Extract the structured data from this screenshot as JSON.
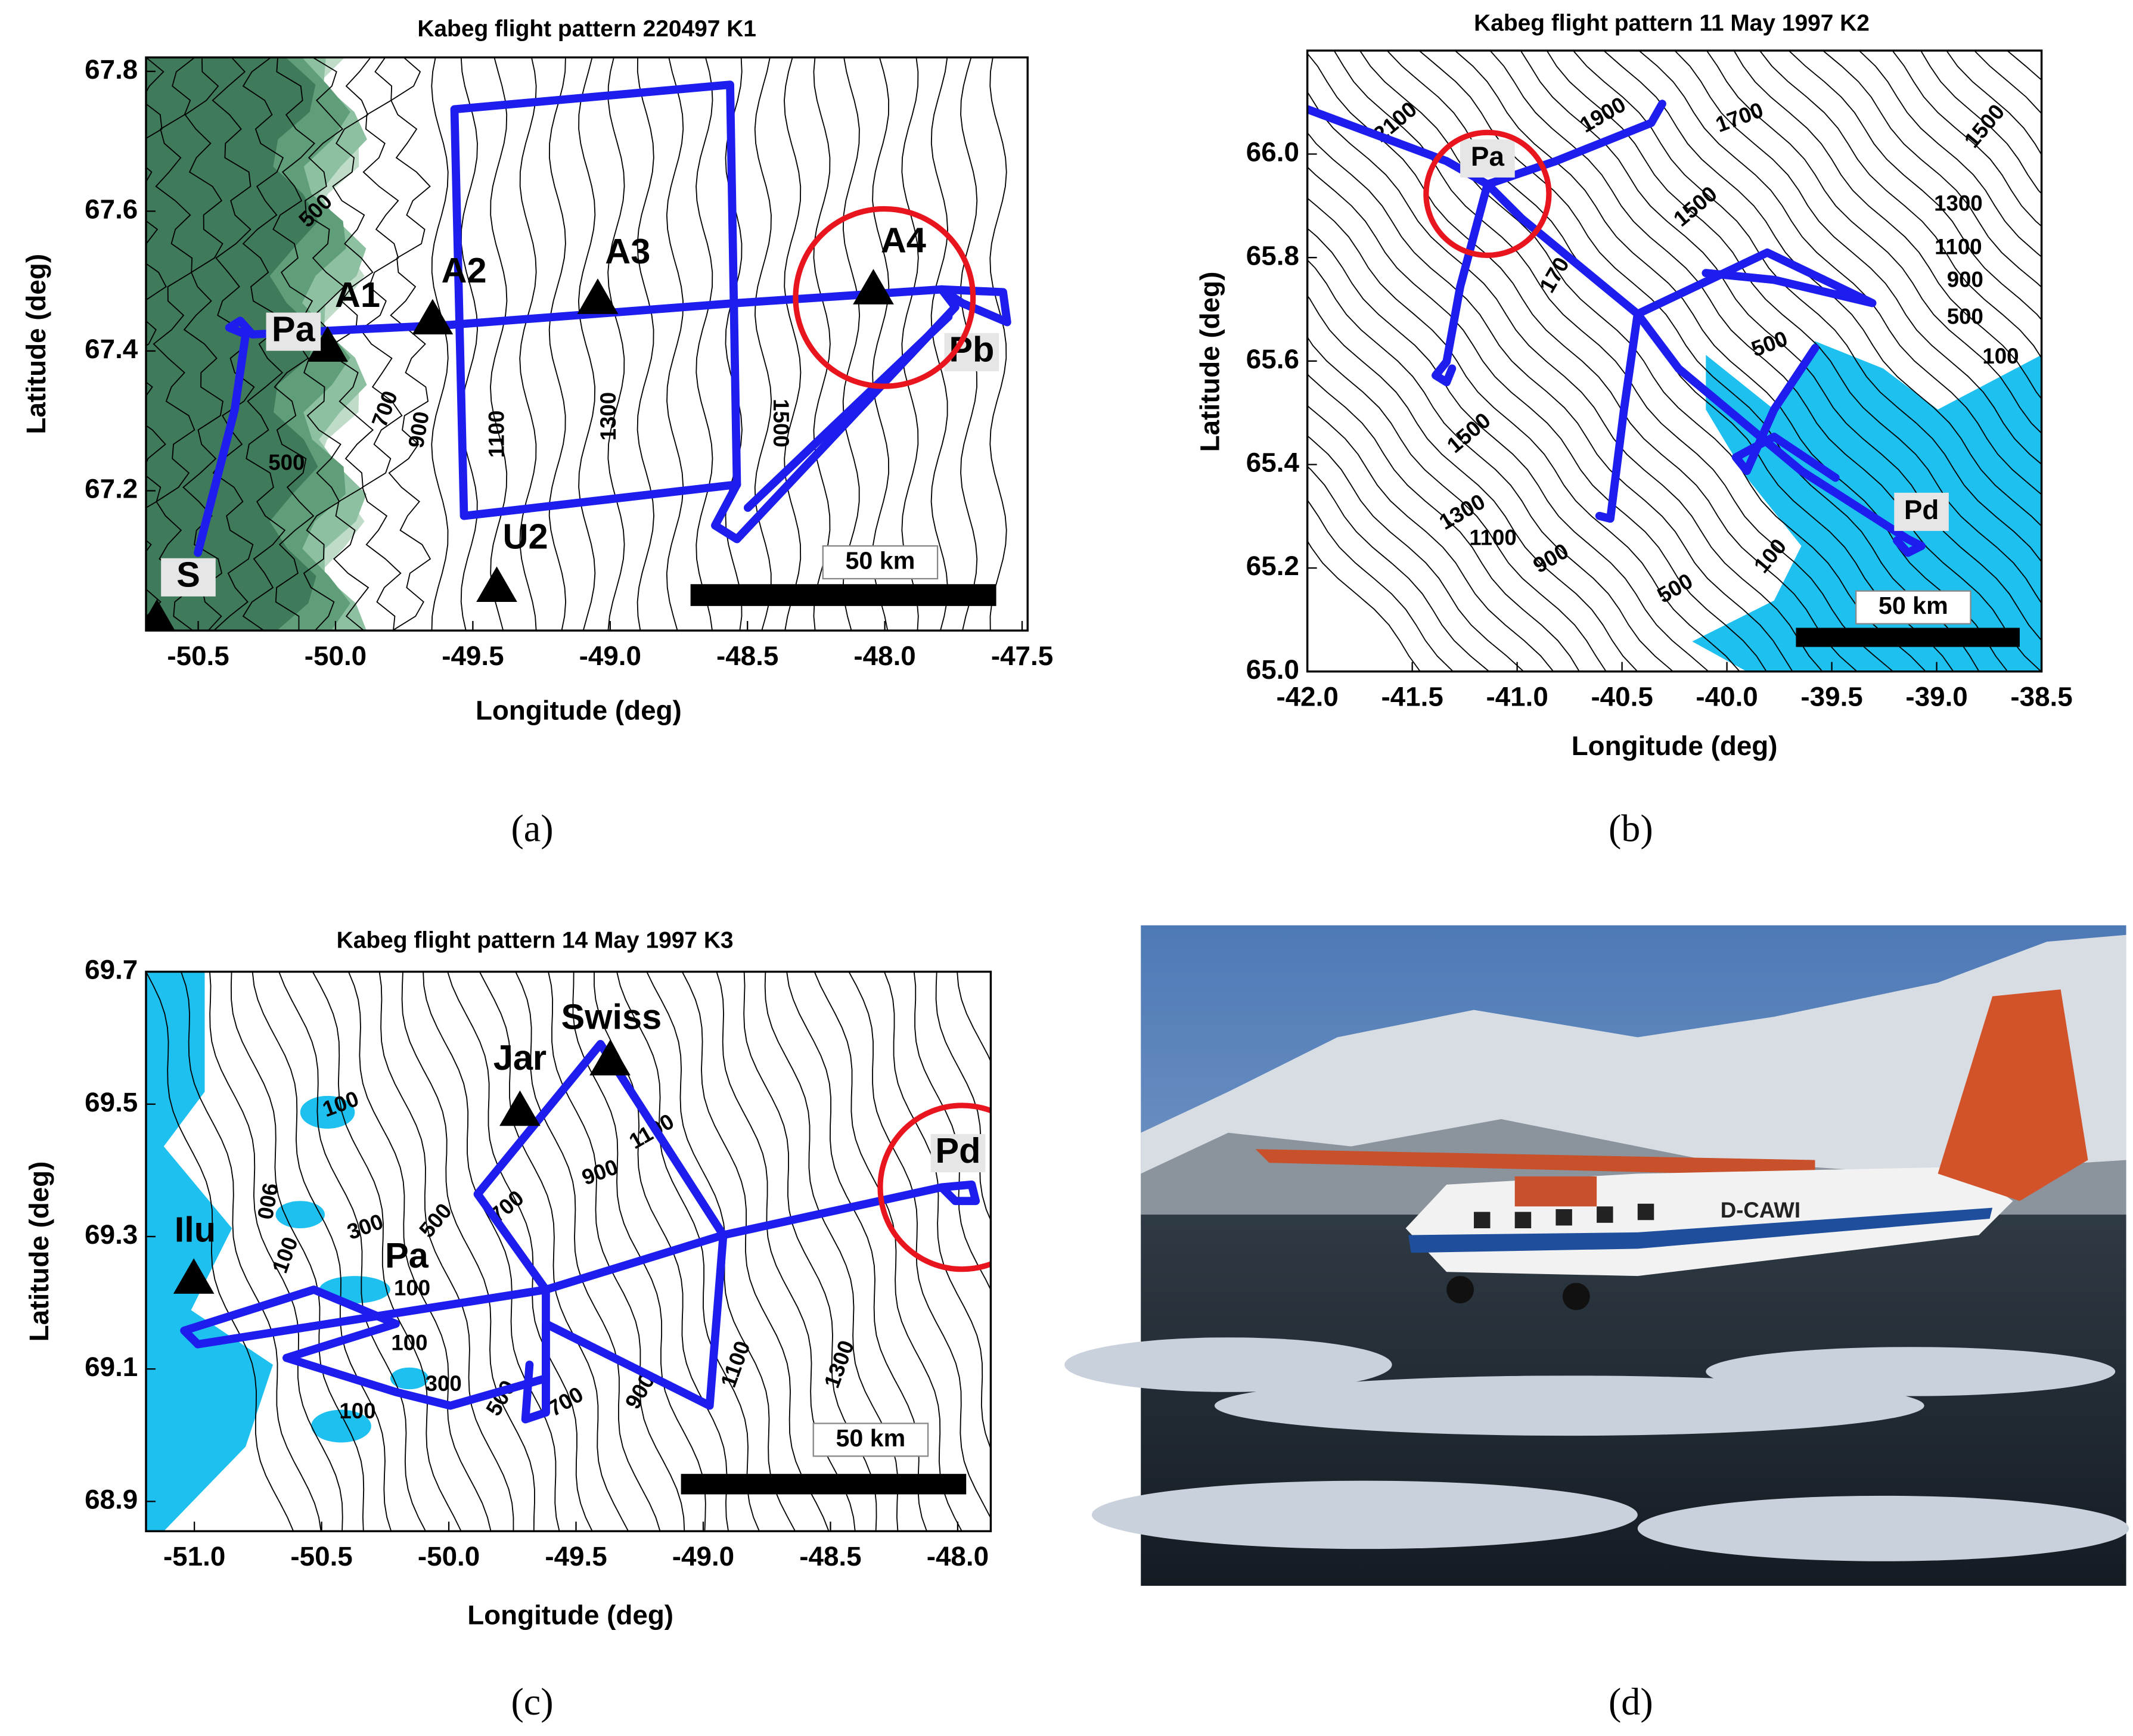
{
  "panels": [
    {
      "title": "Kabeg flight pattern 220497 K1",
      "x_label": "Longitude (deg)",
      "y_label": "Latitude (deg)",
      "xlim": [
        -50.69,
        -47.48
      ],
      "ylim": [
        67.0,
        67.82
      ],
      "xticks": [
        -50.5,
        {
          "value": -50.0,
          "label": "-50.0"
        },
        -49.5,
        {
          "value": -49.0,
          "label": "-49.0"
        },
        -48.5,
        {
          "value": -48.0,
          "label": "-48.0"
        },
        -47.5
      ],
      "yticks": [
        67.2,
        67.4,
        67.6,
        67.8
      ],
      "place_labels": [
        "Pa",
        "A1",
        "A2",
        "A3",
        "A4",
        "Pb",
        "U2",
        "S"
      ],
      "contour_labels": [
        500,
        700,
        900,
        1100,
        1300,
        1500,
        500
      ],
      "scale_label": "50 km",
      "caption": "(a)"
    },
    {
      "title": "Kabeg flight pattern 11 May 1997 K2",
      "x_label": "Longitude (deg)",
      "y_label": "Latitude (deg)",
      "xlim": [
        -42.0,
        -38.5
      ],
      "ylim": [
        65.0,
        66.2
      ],
      "xticks": [
        {
          "value": -42.0,
          "label": "-42.0"
        },
        -41.5,
        {
          "value": -41.0,
          "label": "-41.0"
        },
        -40.5,
        {
          "value": -40.0,
          "label": "-40.0"
        },
        -39.5,
        {
          "value": -39.0,
          "label": "-39.0"
        },
        -38.5
      ],
      "yticks": [
        {
          "value": 65.0,
          "label": "65.0"
        },
        65.2,
        65.4,
        65.6,
        65.8,
        {
          "value": 66.0,
          "label": "66.0"
        }
      ],
      "place_labels": [
        "Pa",
        "Pd"
      ],
      "contour_labels": [
        2100,
        1900,
        1700,
        1500,
        1300,
        1100,
        900,
        500,
        100,
        1500,
        170,
        500,
        1500,
        1300,
        1100,
        900,
        500,
        100
      ],
      "scale_label": "50 km",
      "caption": "(b)"
    },
    {
      "title": "Kabeg flight pattern 14 May 1997 K3",
      "x_label": "Longitude (deg)",
      "y_label": "Latitude (deg)",
      "xlim": [
        -51.19,
        -47.87
      ],
      "ylim": [
        68.855,
        69.7
      ],
      "xticks": [
        {
          "value": -51.0,
          "label": "-51.0"
        },
        -50.5,
        {
          "value": -50.0,
          "label": "-50.0"
        },
        -49.5,
        {
          "value": -49.0,
          "label": "-49.0"
        },
        -48.5,
        {
          "value": -48.0,
          "label": "-48.0"
        }
      ],
      "yticks": [
        68.9,
        69.1,
        69.3,
        69.5,
        69.7
      ],
      "place_labels": [
        "Swiss",
        "Jar",
        "Ilu",
        "Pa",
        "Pd"
      ],
      "contour_labels": [
        100,
        900,
        100,
        300,
        100,
        100,
        300,
        100,
        500,
        700,
        900,
        1100,
        1300,
        500,
        700,
        900,
        1100
      ],
      "scale_label": "50 km",
      "caption": "(c)"
    }
  ],
  "photo": {
    "registration": "D-CAWI",
    "caption": "(d)"
  }
}
